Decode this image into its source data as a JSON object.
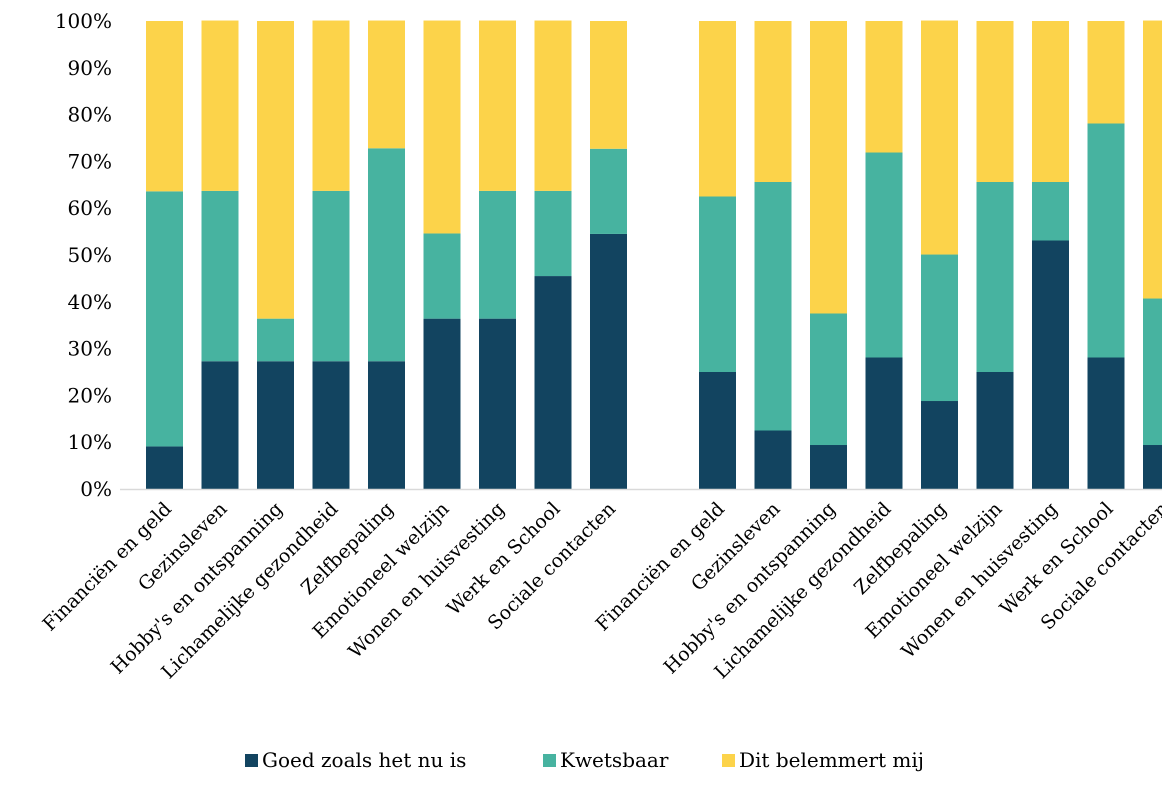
{
  "chart_data": {
    "type": "bar",
    "stacked": true,
    "stack_mode": "percent",
    "groups": [
      {
        "categories": [
          "Financiën en geld",
          "Gezinsleven",
          "Hobby's en ontspanning",
          "Lichamelijke gezondheid",
          "Zelfbepaling",
          "Emotioneel welzijn",
          "Wonen en huisvesting",
          "Werk en School",
          "Sociale contacten"
        ],
        "series": [
          {
            "name": "Goed zoals het nu is",
            "values": [
              9.1,
              27.3,
              27.3,
              27.3,
              27.3,
              36.4,
              36.4,
              45.5,
              54.5
            ]
          },
          {
            "name": "Kwetsbaar",
            "values": [
              54.5,
              36.4,
              9.1,
              36.4,
              45.5,
              18.2,
              27.3,
              18.2,
              18.2
            ]
          },
          {
            "name": "Dit belemmert mij",
            "values": [
              36.4,
              36.4,
              63.6,
              36.4,
              27.3,
              45.5,
              36.4,
              36.4,
              27.3
            ]
          }
        ]
      },
      {
        "categories": [
          "Financiën en geld",
          "Gezinsleven",
          "Hobby's en ontspanning",
          "Lichamelijke gezondheid",
          "Zelfbepaling",
          "Emotioneel welzijn",
          "Wonen en huisvesting",
          "Werk en School",
          "Sociale contacten"
        ],
        "series": [
          {
            "name": "Goed zoals het nu is",
            "values": [
              25.0,
              12.5,
              9.4,
              28.1,
              18.8,
              25.0,
              53.1,
              28.1,
              9.4
            ]
          },
          {
            "name": "Kwetsbaar",
            "values": [
              37.5,
              53.1,
              28.1,
              43.8,
              31.3,
              40.6,
              12.5,
              50.0,
              31.3
            ]
          },
          {
            "name": "Dit belemmert mij",
            "values": [
              37.5,
              34.4,
              62.5,
              28.1,
              50.0,
              34.4,
              34.4,
              21.9,
              59.4
            ]
          }
        ]
      }
    ],
    "yaxis": {
      "ylim": [
        0,
        100
      ],
      "ticks": [
        "0%",
        "10%",
        "20%",
        "30%",
        "40%",
        "50%",
        "60%",
        "70%",
        "80%",
        "90%",
        "100%"
      ]
    },
    "legend": {
      "position": "bottom",
      "entries": [
        "Goed zoals het nu is",
        "Kwetsbaar",
        "Dit belemmert mij"
      ]
    },
    "colors": {
      "Goed zoals het nu is": "#124460",
      "Kwetsbaar": "#47B3A0",
      "Dit belemmert mij": "#FCD34A"
    },
    "grid": false
  }
}
